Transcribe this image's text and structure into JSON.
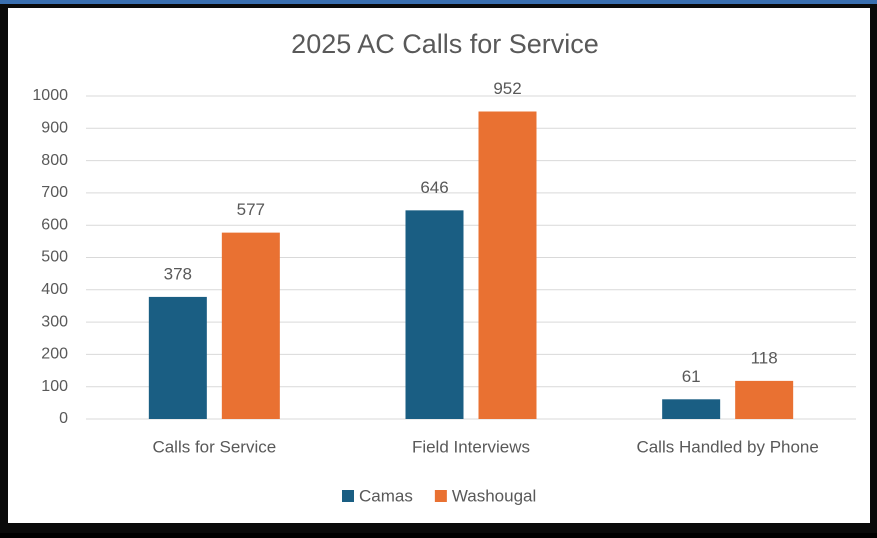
{
  "chart_data": {
    "type": "bar",
    "title": "2025 AC Calls for Service",
    "categories": [
      "Calls for Service",
      "Field Interviews",
      "Calls Handled by Phone"
    ],
    "series": [
      {
        "name": "Camas",
        "color": "#1a5e83",
        "values": [
          378,
          646,
          61
        ]
      },
      {
        "name": "Washougal",
        "color": "#e97132",
        "values": [
          577,
          952,
          118
        ]
      }
    ],
    "ylim": [
      0,
      1000
    ],
    "yticks": [
      0,
      100,
      200,
      300,
      400,
      500,
      600,
      700,
      800,
      900,
      1000
    ],
    "grid": true,
    "legend": "bottom"
  }
}
